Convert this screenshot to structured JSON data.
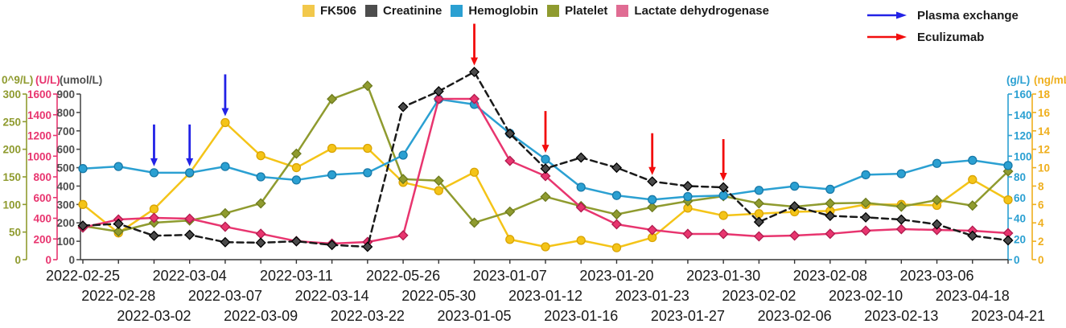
{
  "legend": {
    "series": [
      {
        "label": "FK506",
        "color": "#F2C84B"
      },
      {
        "label": "Creatinine",
        "color": "#4D4D4D"
      },
      {
        "label": "Hemoglobin",
        "color": "#2BA0D2"
      },
      {
        "label": "Platelet",
        "color": "#8F9B2F"
      },
      {
        "label": "Lactate dehydrogenase",
        "color": "#E06C93"
      }
    ],
    "annotations": [
      {
        "label": "Plasma exchange",
        "color": "#2222E6"
      },
      {
        "label": "Eculizumab",
        "color": "#F20D0D"
      }
    ]
  },
  "axes": {
    "left": [
      {
        "unit": "0^9/L)",
        "color": "#8F9B2F",
        "max": 300,
        "ticks": [
          0,
          50,
          100,
          150,
          200,
          250,
          300
        ]
      },
      {
        "unit": "(U/L)",
        "color": "#E8356F",
        "max": 1600,
        "ticks": [
          0,
          200,
          400,
          600,
          800,
          1000,
          1200,
          1400,
          1600
        ]
      },
      {
        "unit": "(umol/L)",
        "color": "#4D4D4D",
        "max": 900,
        "ticks": [
          0,
          100,
          200,
          300,
          400,
          500,
          600,
          700,
          800,
          900
        ]
      }
    ],
    "right": [
      {
        "unit": "(g/L)",
        "color": "#2BA0D2",
        "max": 160,
        "ticks": [
          0,
          20,
          40,
          60,
          80,
          100,
          120,
          140,
          160
        ]
      },
      {
        "unit": "(ng/mL)",
        "color": "#EFAF1E",
        "max": 18,
        "ticks": [
          0,
          2,
          4,
          6,
          8,
          10,
          12,
          14,
          16,
          18
        ]
      }
    ]
  },
  "chart_data": {
    "type": "line",
    "x": [
      "2022-02-25",
      "2022-02-28",
      "2022-03-02",
      "2022-03-04",
      "2022-03-07",
      "2022-03-09",
      "2022-03-11",
      "2022-03-14",
      "2022-03-22",
      "2022-05-26",
      "2022-05-30",
      "2023-01-05",
      "2023-01-07",
      "2023-01-12",
      "2023-01-16",
      "2023-01-20",
      "2023-01-23",
      "2023-01-27",
      "2023-01-30",
      "2023-02-02",
      "2023-02-06",
      "2023-02-08",
      "2023-02-10",
      "2023-02-13",
      "2023-03-06",
      "2023-04-18",
      "2023-04-21"
    ],
    "series": [
      {
        "name": "FK506",
        "unit": "ng/mL",
        "axis_max": 18,
        "color": "#F4C418",
        "edge": "#D9A404",
        "marker": "circle",
        "zorder": 1,
        "values": [
          6.0,
          2.9,
          5.5,
          9.4,
          14.9,
          11.3,
          10.0,
          12.1,
          12.1,
          8.4,
          7.5,
          9.5,
          2.2,
          1.4,
          2.1,
          1.3,
          2.4,
          5.6,
          4.8,
          5.0,
          5.2,
          5.3,
          6.0,
          6.0,
          5.9,
          8.7,
          6.5
        ]
      },
      {
        "name": "Creatinine",
        "unit": "umol/L",
        "axis_max": 900,
        "color": "#1A1A1A",
        "edge": "#000000",
        "marker_fill": "#4A4A4A",
        "marker": "diamond",
        "dash": "8 5",
        "zorder": 5,
        "values": [
          185,
          195,
          130,
          135,
          95,
          92,
          100,
          80,
          70,
          830,
          915,
          1020,
          685,
          495,
          555,
          500,
          425,
          400,
          393,
          205,
          290,
          238,
          230,
          218,
          192,
          130,
          105
        ]
      },
      {
        "name": "Hemoglobin",
        "unit": "g/L",
        "axis_max": 160,
        "color": "#2BA0D2",
        "edge": "#1879A8",
        "marker": "circle",
        "zorder": 3,
        "values": [
          88,
          90,
          84,
          84,
          90,
          80,
          77,
          82,
          84,
          101,
          155,
          150,
          122,
          97,
          70,
          62,
          58,
          61,
          62,
          67,
          71,
          68,
          82,
          83,
          93,
          96,
          91
        ]
      },
      {
        "name": "Platelet",
        "unit": "10^9/L",
        "axis_max": 300,
        "color": "#8F9B2F",
        "edge": "#6D7A1E",
        "marker": "diamond",
        "zorder": 2,
        "values": [
          61,
          51,
          67,
          71,
          84,
          102,
          192,
          291,
          315,
          146,
          143,
          67,
          87,
          114,
          97,
          82,
          95,
          106,
          115,
          102,
          96,
          102,
          103,
          96,
          108,
          98,
          160
        ]
      },
      {
        "name": "Lactate dehydrogenase",
        "unit": "U/L",
        "axis_max": 1600,
        "color": "#E8356F",
        "edge": "#B01B4E",
        "marker": "diamond",
        "zorder": 4,
        "values": [
          310,
          388,
          404,
          396,
          318,
          250,
          179,
          155,
          171,
          235,
          1553,
          1553,
          955,
          808,
          505,
          342,
          287,
          249,
          249,
          225,
          233,
          250,
          280,
          295,
          287,
          280,
          256
        ]
      }
    ],
    "annotations": [
      {
        "type": "plasma_exchange",
        "label": "Plasma exchange",
        "color": "#2222E6",
        "dates": [
          "2022-03-02",
          "2022-03-04",
          "2022-03-07"
        ]
      },
      {
        "type": "eculizumab",
        "label": "Eculizumab",
        "color": "#F20D0D",
        "dates": [
          "2023-01-05",
          "2023-01-12",
          "2023-01-23",
          "2023-01-30"
        ]
      }
    ],
    "layout": {
      "legend_position": "top",
      "grid": false,
      "x_label_rows": 3
    }
  }
}
